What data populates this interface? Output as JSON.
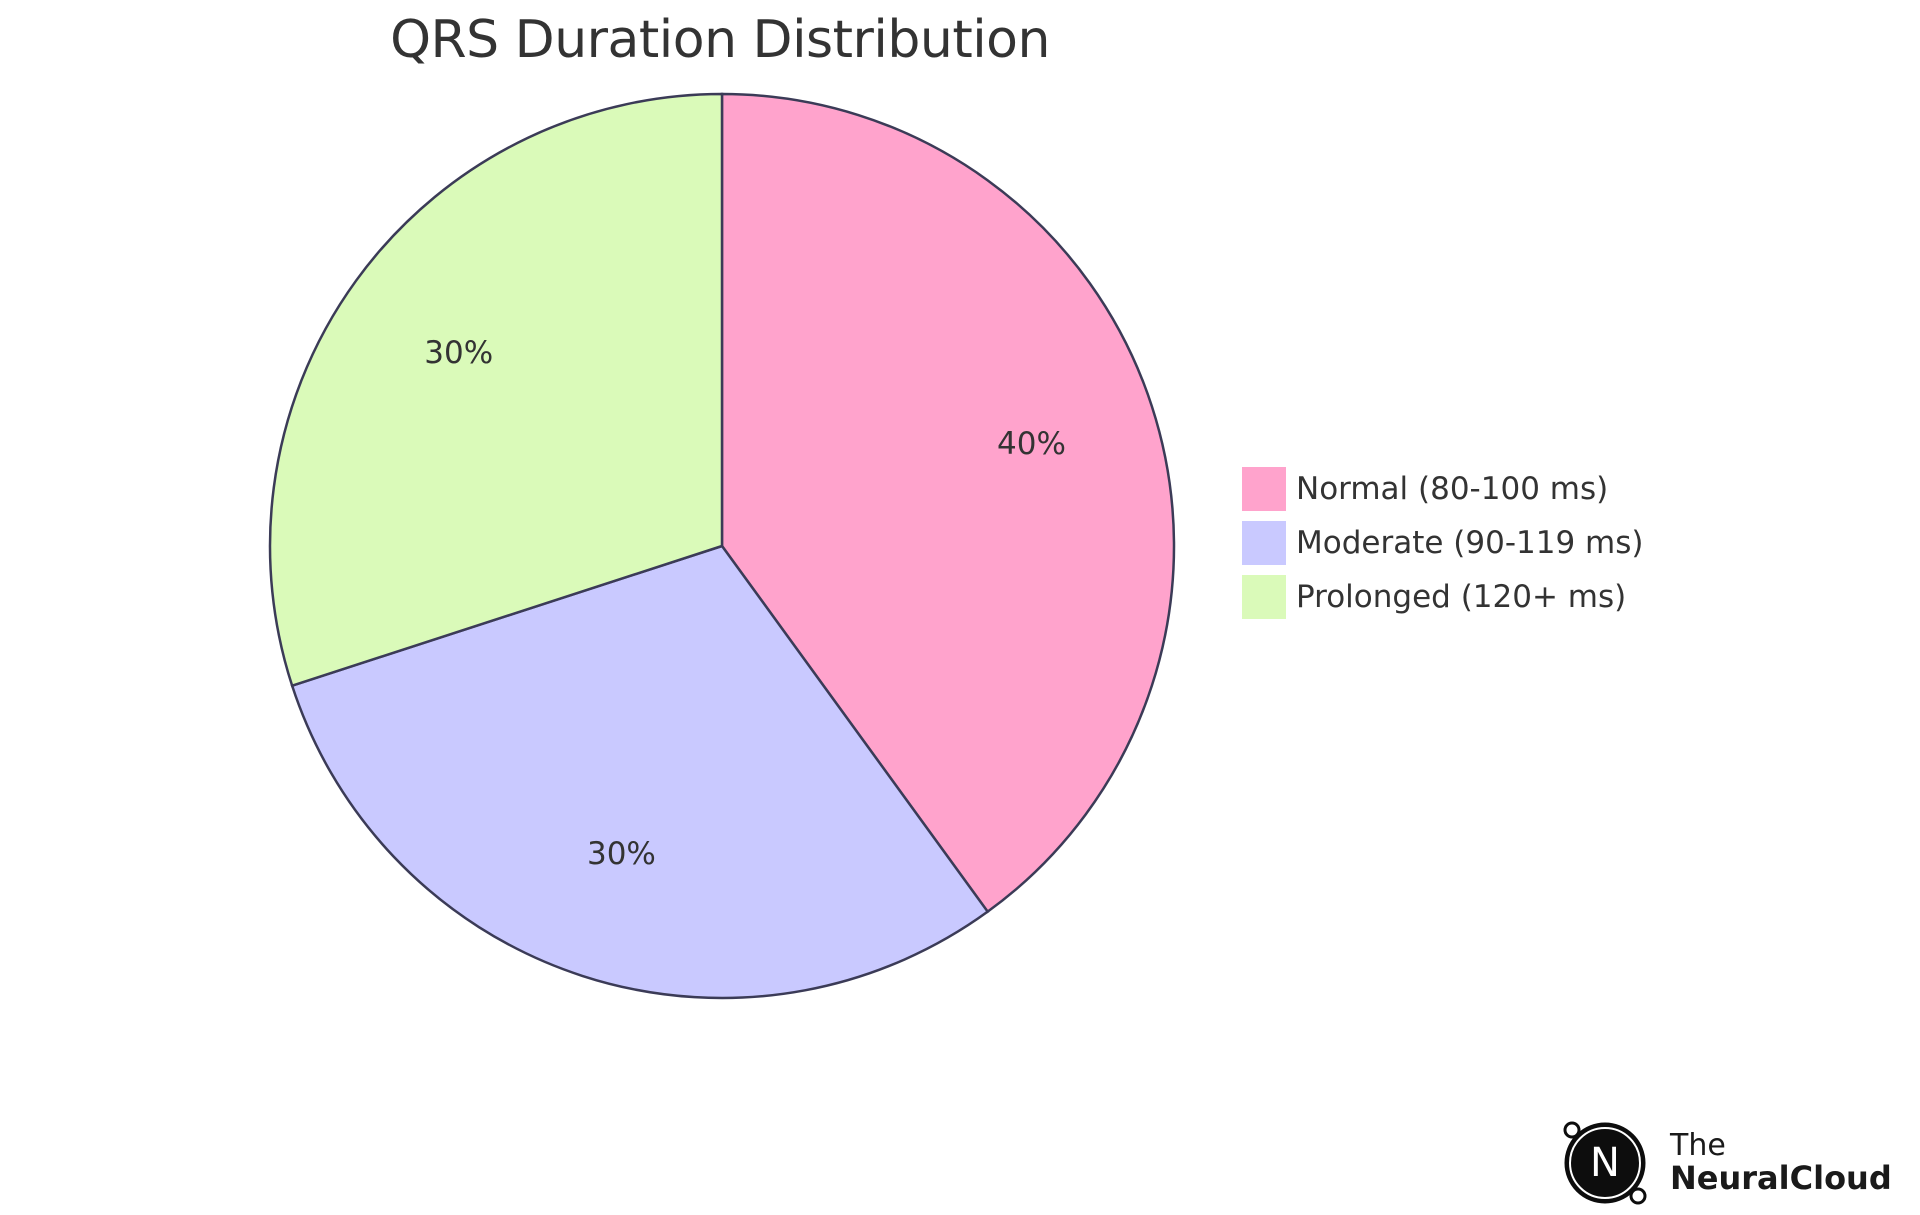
{
  "chart_data": {
    "type": "pie",
    "title": "QRS Duration Distribution",
    "categories": [
      "Normal (80-100 ms)",
      "Moderate (90-119 ms)",
      "Prolonged (120+ ms)"
    ],
    "values": [
      40,
      30,
      30
    ],
    "slice_labels": [
      "40%",
      "30%",
      "30%"
    ],
    "colors": [
      "#FFA3CC",
      "#C9C9FF",
      "#DAFAB9"
    ],
    "stroke_color": "#3B3B57",
    "legend_placement": "right"
  },
  "brand": {
    "line1": "The",
    "line2": "NeuralCloud",
    "logo_letter": "N"
  }
}
